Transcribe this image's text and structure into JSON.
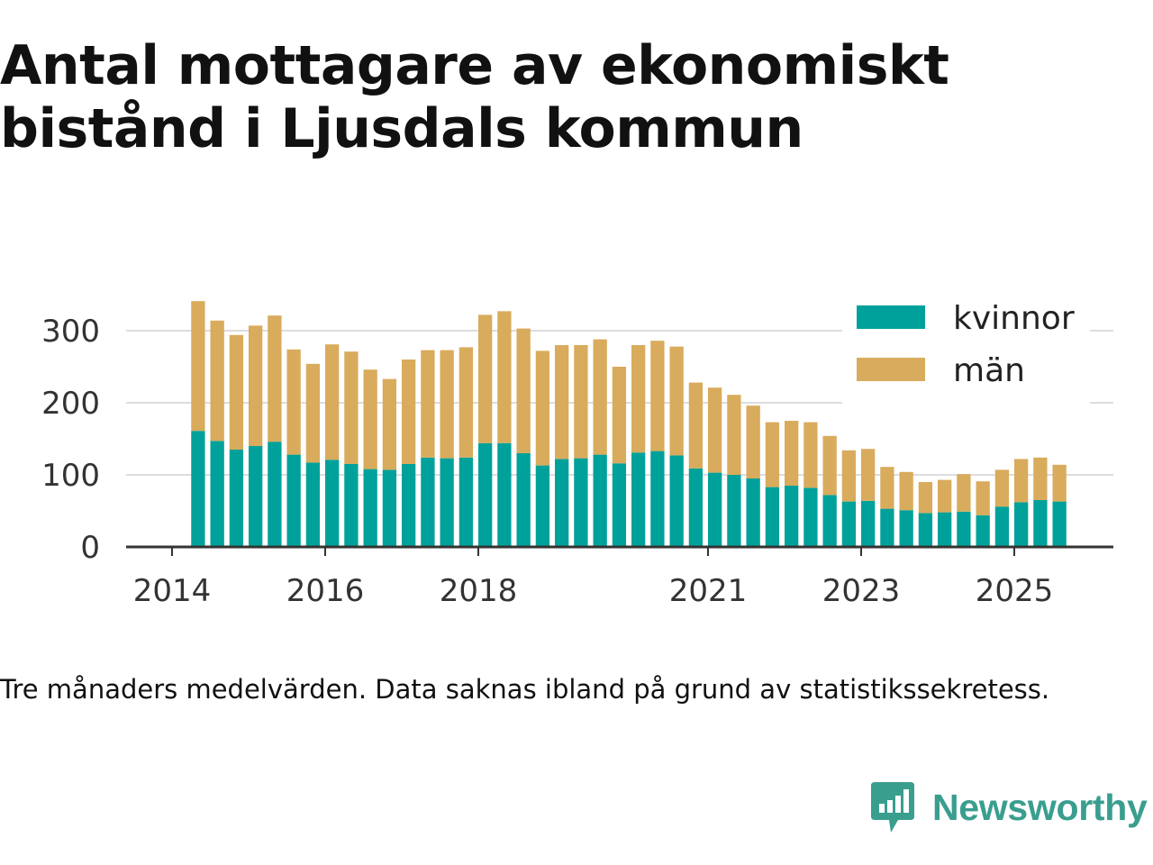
{
  "page": {
    "title": "Antal mottagare av ekonomiskt bistånd i Ljusdals kommun",
    "caption": "Tre månaders medelvärden. Data saknas ibland på grund av statistikssekretess.",
    "brand": "Newsworthy",
    "brand_color": "#3a9e8f"
  },
  "chart_data": {
    "type": "bar",
    "stacked": true,
    "title": "Antal mottagare av ekonomiskt bistånd i Ljusdals kommun",
    "xlabel": "",
    "ylabel": "",
    "ylim": [
      0,
      340
    ],
    "yticks": [
      0,
      100,
      200,
      300
    ],
    "x_domain": [
      2014.0,
      2026.5
    ],
    "x_ticks": [
      2014,
      2016,
      2018,
      2021,
      2023,
      2025
    ],
    "x_tick_labels": [
      "2014",
      "2016",
      "2018",
      "2021",
      "2023",
      "2025"
    ],
    "grid": true,
    "legend_position": "top-right",
    "bar_width_years": 0.18,
    "x": [
      2014.34,
      2014.59,
      2014.84,
      2015.09,
      2015.34,
      2015.59,
      2015.84,
      2016.09,
      2016.34,
      2016.59,
      2016.84,
      2017.09,
      2017.34,
      2017.59,
      2017.84,
      2018.09,
      2018.34,
      2018.59,
      2018.84,
      2019.09,
      2019.34,
      2019.59,
      2019.84,
      2020.09,
      2020.34,
      2020.59,
      2020.84,
      2021.09,
      2021.34,
      2021.59,
      2021.84,
      2022.09,
      2022.34,
      2022.59,
      2022.84,
      2023.09,
      2023.34,
      2023.59,
      2023.84,
      2024.09,
      2024.34,
      2024.59,
      2024.84,
      2025.09,
      2025.34,
      2025.59
    ],
    "series": [
      {
        "name": "kvinnor",
        "color": "#00a19a",
        "values": [
          161,
          147,
          135,
          140,
          146,
          128,
          117,
          121,
          115,
          108,
          107,
          115,
          124,
          123,
          124,
          144,
          144,
          130,
          113,
          122,
          123,
          128,
          116,
          131,
          133,
          127,
          109,
          103,
          100,
          95,
          83,
          85,
          82,
          72,
          63,
          64,
          53,
          51,
          47,
          48,
          49,
          44,
          56,
          62,
          65,
          63
        ]
      },
      {
        "name": "män",
        "color": "#d9ab5c",
        "values": [
          180,
          167,
          159,
          167,
          175,
          146,
          137,
          160,
          156,
          138,
          126,
          145,
          149,
          150,
          153,
          178,
          183,
          173,
          159,
          158,
          157,
          160,
          134,
          149,
          153,
          151,
          119,
          118,
          111,
          101,
          90,
          90,
          91,
          82,
          71,
          72,
          58,
          53,
          43,
          45,
          52,
          47,
          51,
          60,
          59,
          51
        ]
      }
    ]
  }
}
